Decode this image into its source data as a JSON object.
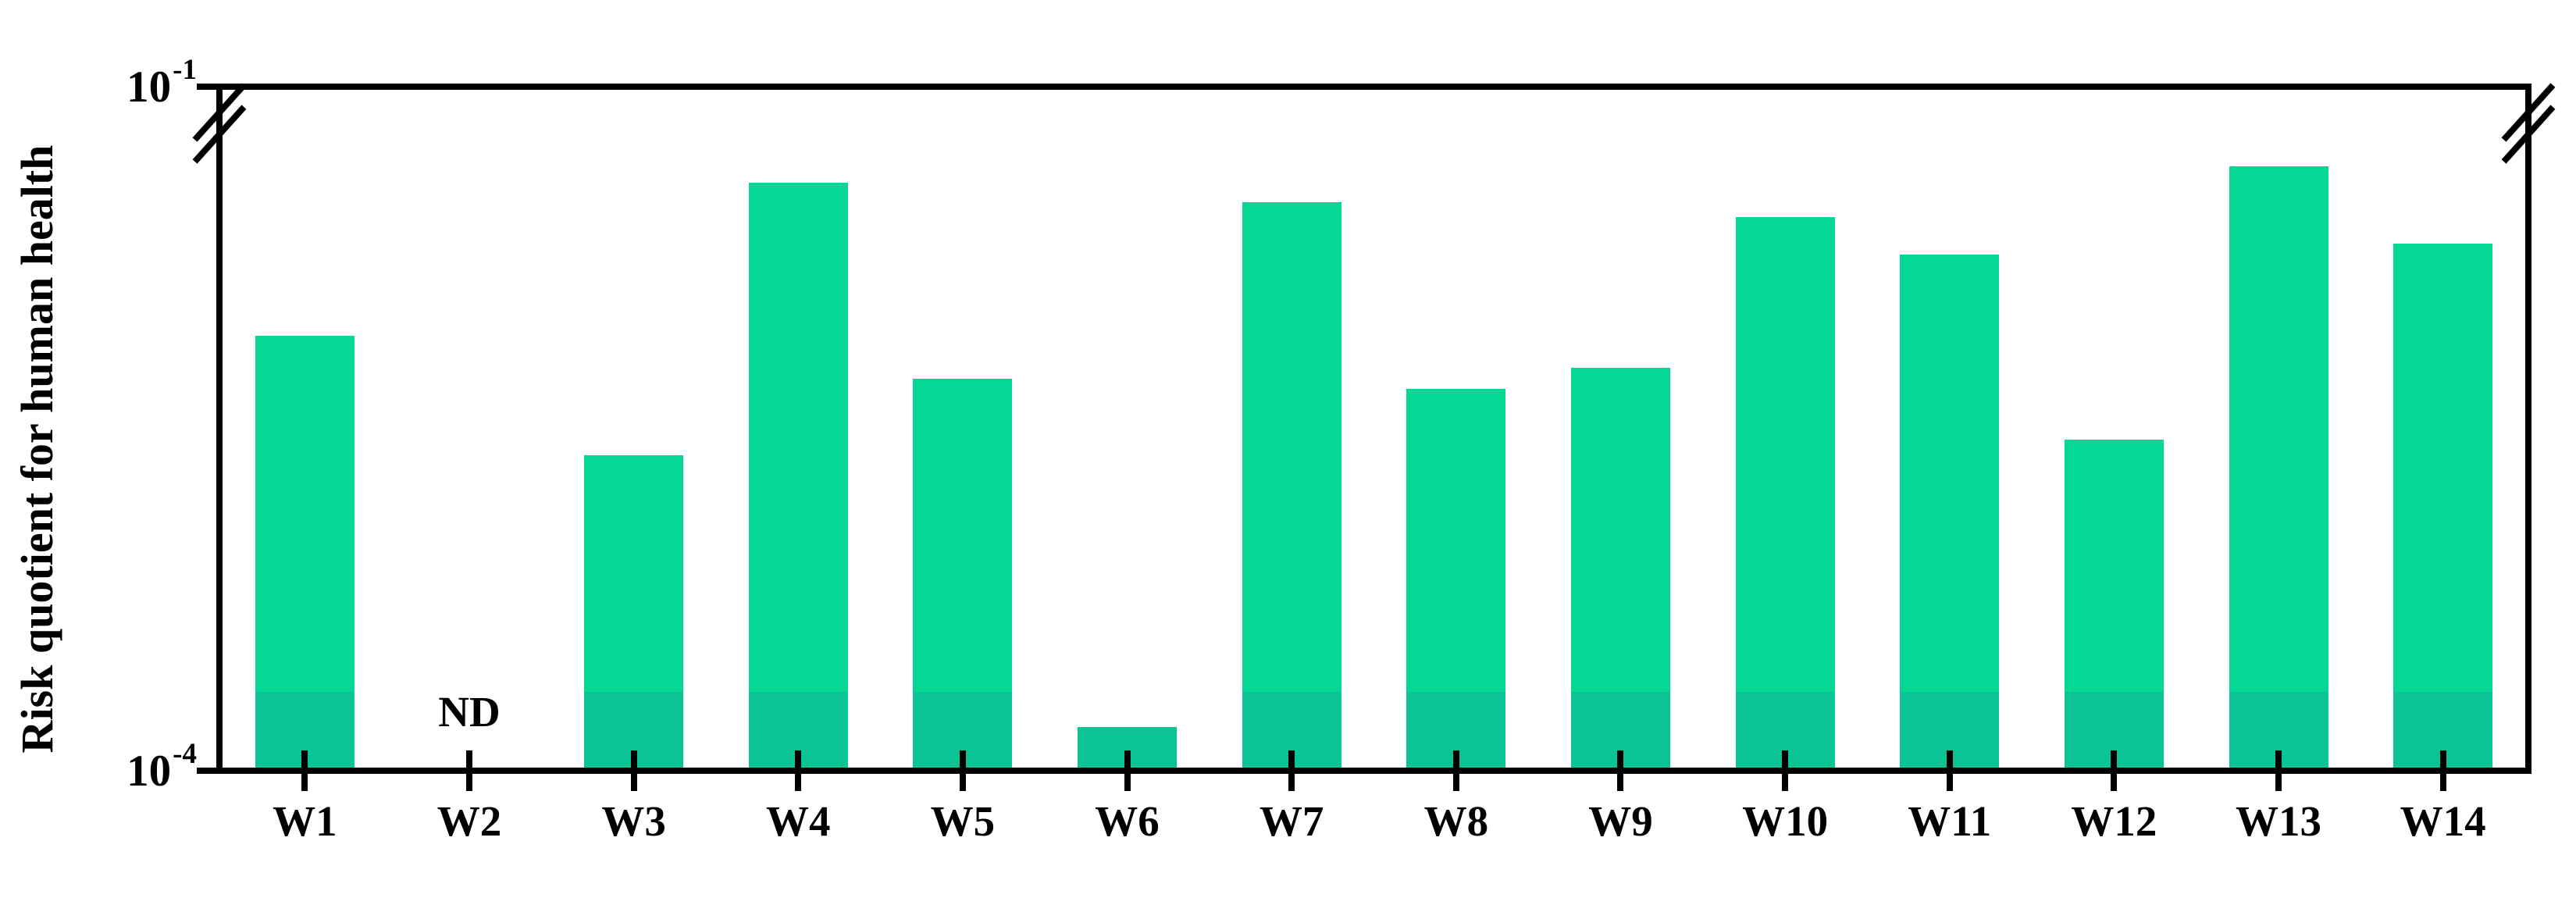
{
  "chart_data": {
    "type": "bar",
    "title": "",
    "xlabel": "",
    "ylabel": "Risk quotient for human health",
    "yscale": "log",
    "ylim": [
      "1e-4",
      "1e-1"
    ],
    "axis_break_below_top": true,
    "grid": false,
    "legend": null,
    "yticks": [
      {
        "base": "10",
        "exp": "-1",
        "position": "top"
      },
      {
        "base": "10",
        "exp": "-4",
        "position": "bottom"
      }
    ],
    "nd_label": "ND",
    "categories": [
      "W1",
      "W2",
      "W3",
      "W4",
      "W5",
      "W6",
      "W7",
      "W8",
      "W9",
      "W10",
      "W11",
      "W12",
      "W13",
      "W14"
    ],
    "bars": [
      {
        "label": "W1",
        "nd": false,
        "height_pct": 63.7,
        "approx_value": "8.2e-3"
      },
      {
        "label": "W2",
        "nd": true,
        "height_pct": 0,
        "approx_value": "ND"
      },
      {
        "label": "W3",
        "nd": false,
        "height_pct": 46.1,
        "approx_value": "2.4e-3"
      },
      {
        "label": "W4",
        "nd": false,
        "height_pct": 86.3,
        "approx_value": "3.9e-2"
      },
      {
        "label": "W5",
        "nd": false,
        "height_pct": 57.4,
        "approx_value": "5.3e-3"
      },
      {
        "label": "W6",
        "nd": false,
        "height_pct": 6.0,
        "approx_value": "1.5e-4"
      },
      {
        "label": "W7",
        "nd": false,
        "height_pct": 83.4,
        "approx_value": "3.2e-2"
      },
      {
        "label": "W8",
        "nd": false,
        "height_pct": 55.9,
        "approx_value": "4.7e-3"
      },
      {
        "label": "W9",
        "nd": false,
        "height_pct": 59.0,
        "approx_value": "5.9e-3"
      },
      {
        "label": "W10",
        "nd": false,
        "height_pct": 81.2,
        "approx_value": "2.7e-2"
      },
      {
        "label": "W11",
        "nd": false,
        "height_pct": 75.7,
        "approx_value": "1.9e-2"
      },
      {
        "label": "W12",
        "nd": false,
        "height_pct": 48.4,
        "approx_value": "2.8e-3"
      },
      {
        "label": "W13",
        "nd": false,
        "height_pct": 88.7,
        "approx_value": "4.6e-2"
      },
      {
        "label": "W14",
        "nd": false,
        "height_pct": 77.3,
        "approx_value": "2.1e-2"
      }
    ],
    "lower_overlap_band": {
      "height_pct": 11.2,
      "top_value_approx": "2.2e-4"
    },
    "colors": {
      "bar": "#04D894",
      "bar_overlap": "#0AC495",
      "axis": "#000000",
      "background": "#FFFFFF",
      "text": "#000000"
    }
  }
}
